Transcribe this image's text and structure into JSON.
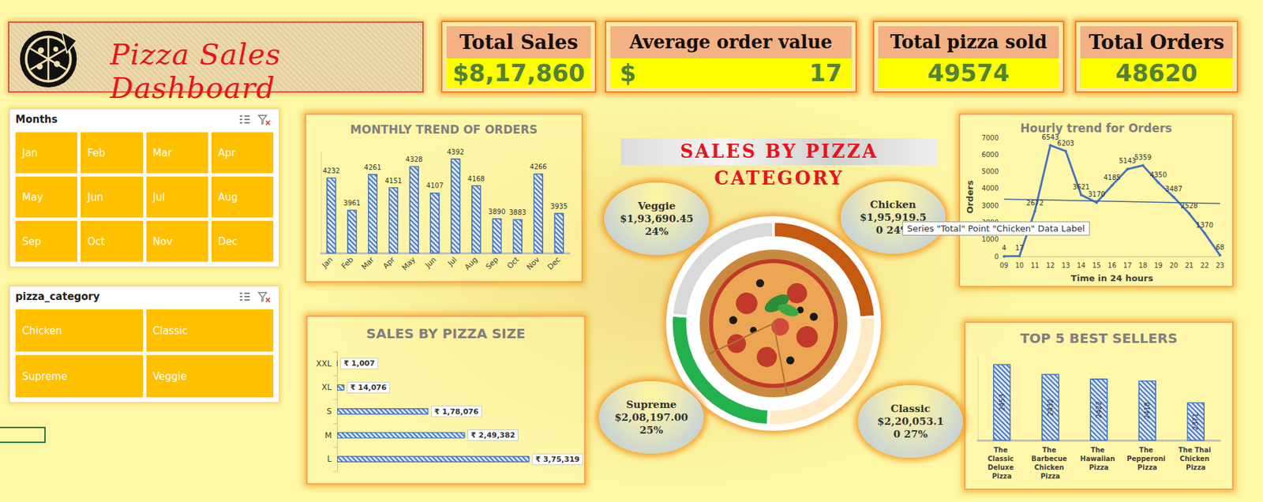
{
  "header": {
    "title": "Pizza Sales Dashboard"
  },
  "kpis": [
    {
      "label": "Total Sales",
      "value": "$8,17,860"
    },
    {
      "label": "Average order value",
      "currency": "$",
      "value": "17"
    },
    {
      "label": "Total pizza sold",
      "value": "49574"
    },
    {
      "label": "Total Orders",
      "value": "48620"
    }
  ],
  "slicers": [
    {
      "title": "Months",
      "items": [
        "Jan",
        "Feb",
        "Mar",
        "Apr",
        "May",
        "Jun",
        "Jul",
        "Aug",
        "Sep",
        "Oct",
        "Nov",
        "Dec"
      ]
    },
    {
      "title": "pizza_category",
      "items": [
        "Chicken",
        "Classic",
        "Supreme",
        "Veggie"
      ]
    }
  ],
  "chart_data": [
    {
      "type": "bar",
      "title": "MONTHLY TREND OF ORDERS",
      "categories": [
        "Jan",
        "Feb",
        "Mar",
        "Apr",
        "May",
        "Jun",
        "Jul",
        "Aug",
        "Sep",
        "Oct",
        "Nov",
        "Dec"
      ],
      "values": [
        4232,
        3961,
        4261,
        4151,
        4328,
        4107,
        4392,
        4168,
        3890,
        3883,
        4266,
        3935
      ],
      "color": "#4472c4",
      "ylim": [
        3600,
        4450
      ],
      "data_labels": true,
      "tick_labels": "x",
      "grid": false
    },
    {
      "type": "bar",
      "title": "SALES BY PIZZA SIZE",
      "orientation": "horizontal",
      "categories": [
        "XXL",
        "XL",
        "S",
        "M",
        "L"
      ],
      "values": [
        1007,
        14076,
        178076,
        249382,
        375319
      ],
      "value_labels": [
        "₹ 1,007",
        "₹ 14,076",
        "₹ 1,78,076",
        "₹ 2,49,382",
        "₹ 3,75,319"
      ],
      "color": "#4472c4",
      "xlim": [
        0,
        380000
      ],
      "data_labels": true,
      "tick_labels": "y",
      "grid": false
    },
    {
      "type": "pie",
      "title": "SALES BY PIZZA CATEGORY",
      "categories": [
        "Chicken",
        "Classic",
        "Supreme",
        "Veggie"
      ],
      "values": [
        195919.5,
        220053.1,
        208197.0,
        193690.45
      ],
      "value_labels": [
        "$1,95,919.5",
        "$2,20,053.1",
        "$2,08,197.00",
        "$1,93,690.45"
      ],
      "percents": [
        24,
        27,
        25,
        24
      ],
      "percent_labels": [
        "0 24%",
        "0 27%",
        "25%",
        "24%"
      ],
      "colors": [
        "#c55a11",
        "#fde9c4",
        "#22b14c",
        "#d9d9d9"
      ],
      "data_labels": true,
      "annotations": [
        "Series \"Total\" Point \"Chicken\" Data Label"
      ]
    },
    {
      "type": "line",
      "title": "Hourly trend for Orders",
      "xlabel": "Time in 24 hours",
      "ylabel": "Orders",
      "categories": [
        "09",
        "10",
        "11",
        "12",
        "13",
        "14",
        "15",
        "16",
        "17",
        "18",
        "19",
        "20",
        "21",
        "22",
        "23"
      ],
      "values": [
        4,
        17,
        2672,
        6543,
        6203,
        3621,
        3170,
        4185,
        5143,
        5359,
        4350,
        3487,
        2528,
        1370,
        68
      ],
      "trendline": [
        3370,
        3110
      ],
      "color": "#4472c4",
      "marker": "circle",
      "ylim": [
        0,
        7000
      ],
      "yticks": [
        0,
        1000,
        2000,
        3000,
        4000,
        5000,
        6000,
        7000
      ],
      "data_labels": true,
      "grid": false
    },
    {
      "type": "bar",
      "title": "TOP 5 BEST SELLERS",
      "categories": [
        "The Classic Deluxe Pizza",
        "The Barbecue Chicken Pizza",
        "The Hawaiian Pizza",
        "The Pepperoni Pizza",
        "The Thai Chicken Pizza"
      ],
      "values": [
        2453,
        2432,
        2422,
        2418,
        2371
      ],
      "color": "#4472c4",
      "ylim": [
        2290,
        2470
      ],
      "data_labels": true,
      "tick_labels": "x",
      "grid": false
    }
  ]
}
